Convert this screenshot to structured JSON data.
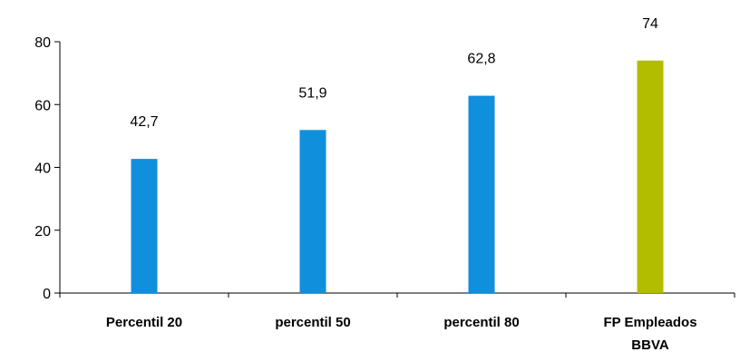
{
  "chart_data": {
    "type": "bar",
    "categories": [
      "Percentil 20",
      "percentil 50",
      "percentil 80",
      "FP Empleados BBVA"
    ],
    "category_lines": [
      [
        "Percentil 20"
      ],
      [
        "percentil 50"
      ],
      [
        "percentil 80"
      ],
      [
        "FP Empleados",
        "BBVA"
      ]
    ],
    "values": [
      42.7,
      51.9,
      62.8,
      74
    ],
    "data_labels": [
      "42,7",
      "51,9",
      "62,8",
      "74"
    ],
    "colors": [
      "#0f8fdc",
      "#0f8fdc",
      "#0f8fdc",
      "#b2bd00"
    ],
    "yticks": [
      0,
      20,
      40,
      60,
      80
    ],
    "ylim": [
      0,
      80
    ],
    "title": "",
    "xlabel": "",
    "ylabel": "",
    "grid": false,
    "legend": false
  }
}
